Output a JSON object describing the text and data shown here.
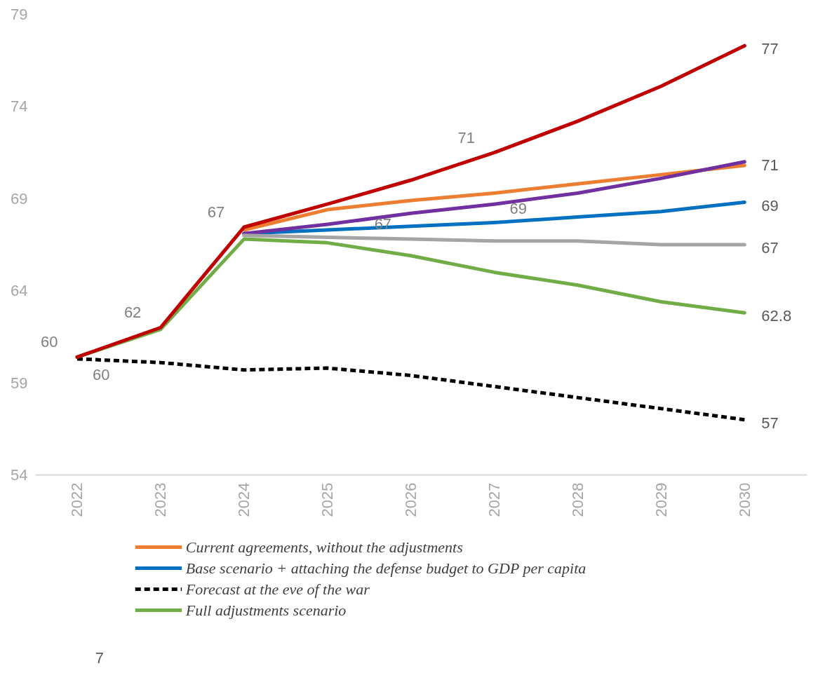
{
  "chart_data": {
    "type": "line",
    "categories": [
      "2022",
      "2023",
      "2024",
      "2025",
      "2026",
      "2027",
      "2028",
      "2029",
      "2030"
    ],
    "ylim": [
      54,
      79
    ],
    "yticks": [
      54,
      59,
      64,
      69,
      74,
      79
    ],
    "grid": false,
    "legend": "bottom",
    "line_style": "solid",
    "marker": "none",
    "series": [
      {
        "name": "Current agreements, without the adjustments",
        "color": "#ed7d31",
        "values": [
          null,
          null,
          67.3,
          68.4,
          68.9,
          69.3,
          69.8,
          70.3,
          70.8
        ]
      },
      {
        "name": "Base scenario + attaching the defense budget to GDP per capita",
        "color": "#0070c0",
        "values": [
          null,
          null,
          67.1,
          67.3,
          67.5,
          67.7,
          68.0,
          68.3,
          68.8
        ]
      },
      {
        "name": "Forecast at the eve of the war",
        "color": "#000000",
        "line_style": "dashed",
        "values": [
          60.3,
          60.1,
          59.7,
          59.8,
          59.4,
          58.8,
          58.2,
          57.6,
          57.0
        ]
      },
      {
        "name": "Full adjustments scenario",
        "color": "#70ad47",
        "values": [
          60.4,
          61.9,
          66.8,
          66.6,
          65.9,
          65.0,
          64.3,
          63.4,
          62.8
        ]
      },
      {
        "color": "#c00000",
        "values": [
          60.4,
          62.0,
          67.45,
          68.7,
          70.0,
          71.5,
          73.2,
          75.1,
          77.3
        ]
      },
      {
        "color": "#7030a0",
        "values": [
          null,
          null,
          67.1,
          67.6,
          68.2,
          68.7,
          69.3,
          70.1,
          71.0
        ]
      },
      {
        "color": "#a5a5a5",
        "values": [
          null,
          null,
          67.0,
          66.9,
          66.8,
          66.7,
          66.7,
          66.5,
          66.5
        ]
      }
    ],
    "annotations": [
      {
        "text": "60",
        "x": "2022",
        "y": 60.4
      },
      {
        "text": "60",
        "x": "2022",
        "y": 60.3
      },
      {
        "text": "62",
        "x": "2023",
        "y": 62.0
      },
      {
        "text": "67",
        "x": "2024",
        "y": 67.45
      },
      {
        "text": "71",
        "x": "2027",
        "y": 71.5
      },
      {
        "text": "69",
        "x": "2027",
        "y": 69.3
      },
      {
        "text": "67",
        "x": "2026",
        "y": 66.8
      },
      {
        "text": "77",
        "x": "2030",
        "y": 77.3
      },
      {
        "text": "71",
        "x": "2030",
        "y": 71.0
      },
      {
        "text": "69",
        "x": "2030",
        "y": 68.8
      },
      {
        "text": "67",
        "x": "2030",
        "y": 66.5
      },
      {
        "text": "62.8",
        "x": "2030",
        "y": 62.8
      },
      {
        "text": "57",
        "x": "2030",
        "y": 57.0
      },
      "7"
    ]
  }
}
